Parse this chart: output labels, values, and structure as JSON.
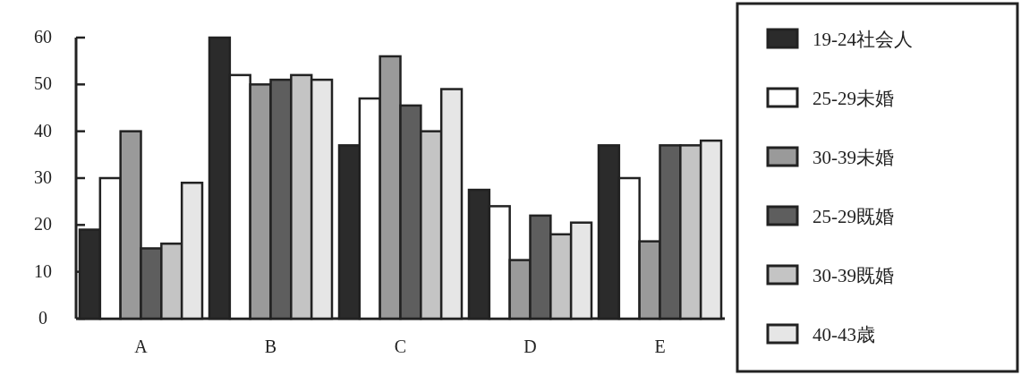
{
  "chart_data": {
    "type": "bar",
    "categories": [
      "A",
      "B",
      "C",
      "D",
      "E"
    ],
    "series": [
      {
        "name": "19-24社会人",
        "color": "#2b2b2b",
        "values": [
          19,
          60,
          37,
          27.5,
          37
        ]
      },
      {
        "name": "25-29未婚",
        "color": "#ffffff",
        "values": [
          30,
          52,
          47,
          24,
          30
        ]
      },
      {
        "name": "30-39未婚",
        "color": "#9a9a9a",
        "values": [
          40,
          50,
          56,
          12.5,
          16.5
        ]
      },
      {
        "name": "25-29既婚",
        "color": "#5e5e5e",
        "values": [
          15,
          51,
          45.5,
          22,
          37
        ]
      },
      {
        "name": "30-39既婚",
        "color": "#c4c4c4",
        "values": [
          16,
          52,
          40,
          18,
          37
        ]
      },
      {
        "name": "40-43歳",
        "color": "#e6e6e6",
        "values": [
          29,
          51,
          49,
          20.5,
          38
        ]
      }
    ],
    "ylim": [
      0,
      60
    ],
    "yticks": [
      0,
      10,
      20,
      30,
      40,
      50,
      60
    ],
    "legend": "right",
    "grid": false
  }
}
